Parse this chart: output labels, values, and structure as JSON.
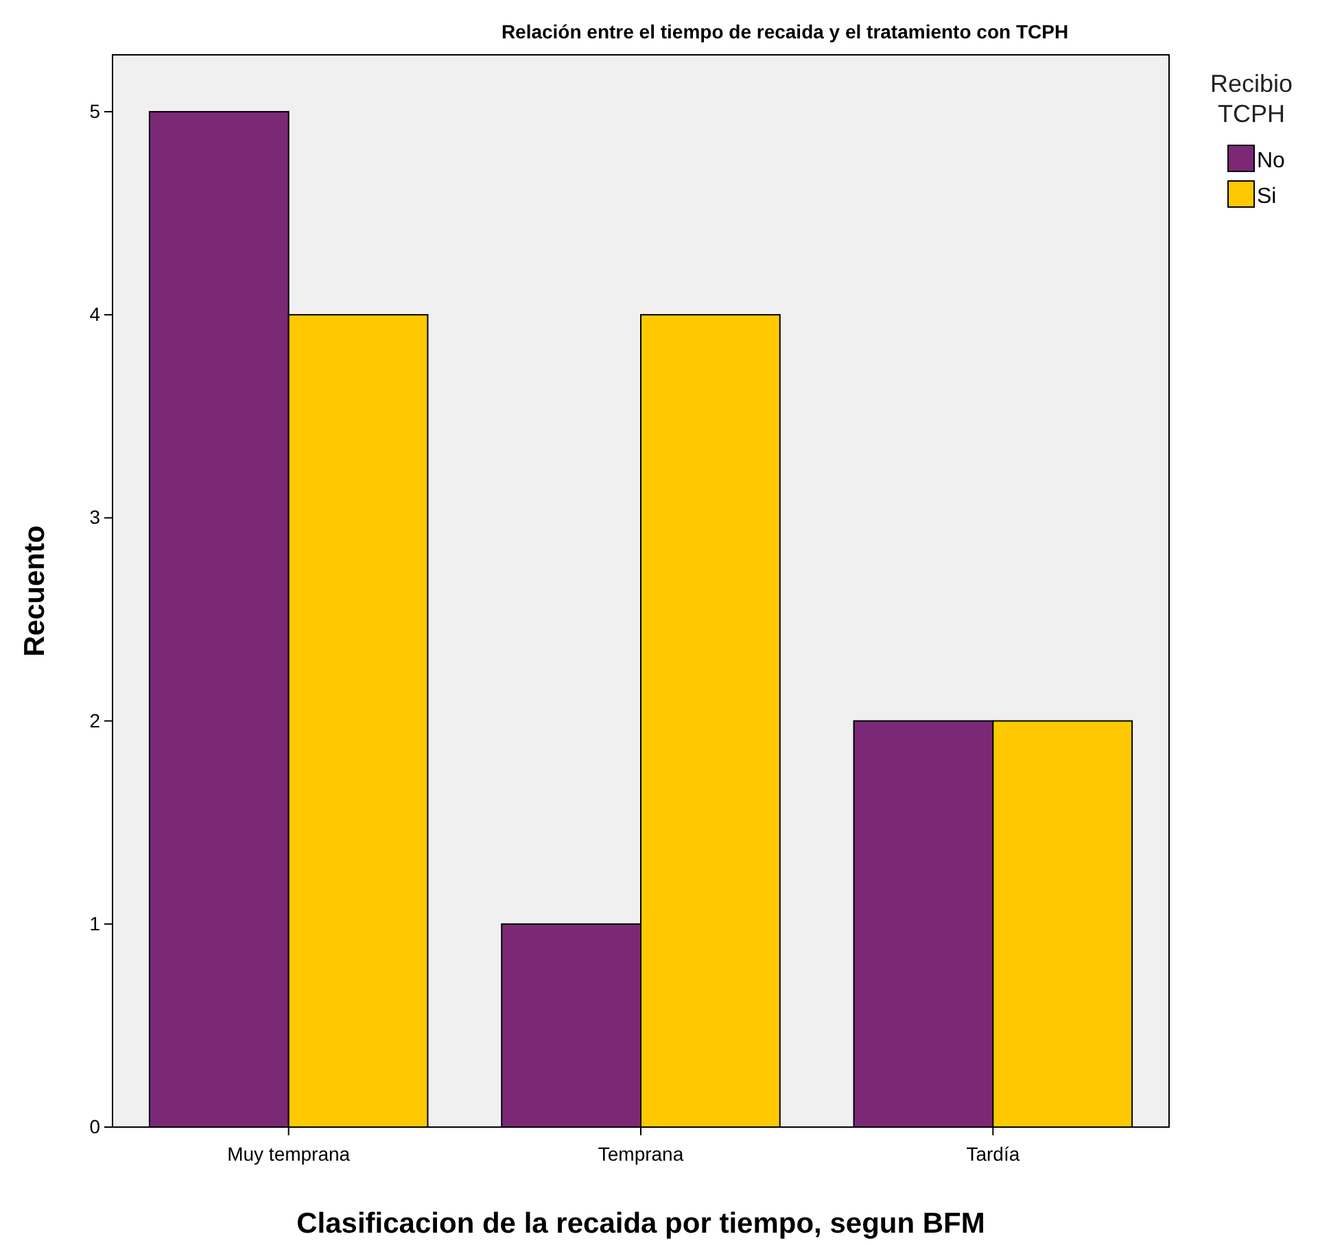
{
  "chart_data": {
    "type": "bar",
    "title": "Relación entre el tiempo de recaida y el tratamiento con TCPH",
    "xlabel": "Clasificacion de la recaida por tiempo, segun BFM",
    "ylabel": "Recuento",
    "legend_title": "Recibio TCPH",
    "categories": [
      "Muy temprana",
      "Temprana",
      "Tardía"
    ],
    "series": [
      {
        "name": "No",
        "color": "#7b2877",
        "values": [
          5,
          1,
          2
        ]
      },
      {
        "name": "Si",
        "color": "#ffc800",
        "values": [
          4,
          4,
          2
        ]
      }
    ],
    "ylim": [
      0,
      5.28
    ],
    "yticks": [
      0,
      1,
      2,
      3,
      4,
      5
    ],
    "grid": false,
    "legend": "top right"
  }
}
